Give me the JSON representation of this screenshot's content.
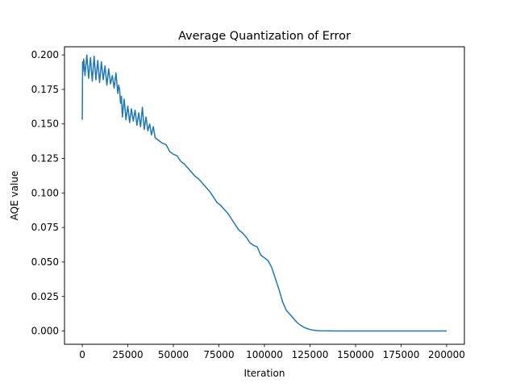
{
  "chart_data": {
    "type": "line",
    "title": "Average Quantization of Error",
    "xlabel": "Iteration",
    "ylabel": "AQE value",
    "xlim": [
      -9750,
      209750
    ],
    "ylim": [
      -0.0096,
      0.2059
    ],
    "grid": false,
    "xticks": [
      0,
      25000,
      50000,
      75000,
      100000,
      125000,
      150000,
      175000,
      200000
    ],
    "xtick_labels": [
      "0",
      "25000",
      "50000",
      "75000",
      "100000",
      "125000",
      "150000",
      "175000",
      "200000"
    ],
    "yticks": [
      0.0,
      0.025,
      0.05,
      0.075,
      0.1,
      0.125,
      0.15,
      0.175,
      0.2
    ],
    "ytick_labels": [
      "0.000",
      "0.025",
      "0.050",
      "0.075",
      "0.100",
      "0.125",
      "0.150",
      "0.175",
      "0.200"
    ],
    "line_color": "#1f77b4",
    "series": [
      {
        "x": [
          0,
          200,
          400,
          800,
          1500,
          2500,
          3500,
          4500,
          5500,
          6500,
          7500,
          8500,
          9500,
          10500,
          11500,
          12500,
          13500,
          14500,
          15500,
          16500,
          17500,
          18500,
          19500,
          20000,
          20500,
          21000,
          21500,
          22000,
          23000,
          24000,
          25000,
          26000,
          27000,
          28000,
          29000,
          30000,
          31000,
          32000,
          33000,
          34000,
          35000,
          36000,
          37000,
          38000,
          39000,
          40000,
          42000,
          44000,
          46000,
          48000,
          50000,
          52000,
          54000,
          56000,
          58000,
          60000,
          62000,
          64000,
          66000,
          68000,
          70000,
          72000,
          74000,
          76000,
          78000,
          80000,
          82000,
          84000,
          86000,
          88000,
          90000,
          92000,
          94000,
          96000,
          98000,
          100000,
          102000,
          104000,
          106000,
          108000,
          110000,
          112000,
          114000,
          116000,
          118000,
          120000,
          122000,
          124000,
          126000,
          128000,
          130000,
          135000,
          140000,
          150000,
          160000,
          175000,
          200000
        ],
        "y": [
          0.153,
          0.195,
          0.188,
          0.197,
          0.185,
          0.2,
          0.183,
          0.198,
          0.181,
          0.199,
          0.182,
          0.196,
          0.18,
          0.195,
          0.182,
          0.192,
          0.178,
          0.19,
          0.179,
          0.185,
          0.176,
          0.187,
          0.172,
          0.178,
          0.175,
          0.165,
          0.17,
          0.155,
          0.168,
          0.153,
          0.163,
          0.151,
          0.161,
          0.152,
          0.16,
          0.149,
          0.158,
          0.148,
          0.162,
          0.146,
          0.155,
          0.145,
          0.15,
          0.142,
          0.148,
          0.14,
          0.138,
          0.136,
          0.135,
          0.13,
          0.128,
          0.127,
          0.123,
          0.121,
          0.118,
          0.115,
          0.112,
          0.11,
          0.107,
          0.104,
          0.101,
          0.097,
          0.093,
          0.091,
          0.088,
          0.085,
          0.081,
          0.077,
          0.073,
          0.071,
          0.068,
          0.064,
          0.062,
          0.061,
          0.055,
          0.053,
          0.051,
          0.046,
          0.038,
          0.03,
          0.021,
          0.015,
          0.012,
          0.009,
          0.006,
          0.004,
          0.0025,
          0.0015,
          0.0008,
          0.0004,
          0.0002,
          0.0001,
          5e-05,
          2e-05,
          1e-05,
          0.0,
          0.0
        ]
      }
    ]
  }
}
